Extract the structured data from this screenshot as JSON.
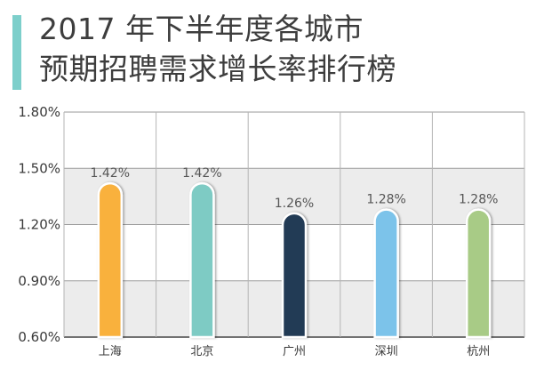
{
  "title": {
    "line1": "2017 年下半年度各城市",
    "line2": "预期招聘需求增长率排行榜",
    "accent_color": "#7dcfcb"
  },
  "chart_data": {
    "type": "bar",
    "title": "2017 年下半年度各城市 预期招聘需求增长率排行榜",
    "categories": [
      "上海",
      "北京",
      "广州",
      "深圳",
      "杭州"
    ],
    "values": [
      1.42,
      1.42,
      1.26,
      1.28,
      1.28
    ],
    "value_labels": [
      "1.42%",
      "1.42%",
      "1.26%",
      "1.28%",
      "1.28%"
    ],
    "colors": [
      "#f9b13c",
      "#7ecbc4",
      "#233a55",
      "#7cc3ea",
      "#a8cb86"
    ],
    "ylim": [
      0.6,
      1.8
    ],
    "yticks": [
      0.6,
      0.9,
      1.2,
      1.5,
      1.8
    ],
    "ytick_labels": [
      "0.60%",
      "0.90%",
      "1.20%",
      "1.50%",
      "1.80%"
    ],
    "xlabel": "",
    "ylabel": "",
    "grid": true,
    "band_color": "#ececec"
  }
}
